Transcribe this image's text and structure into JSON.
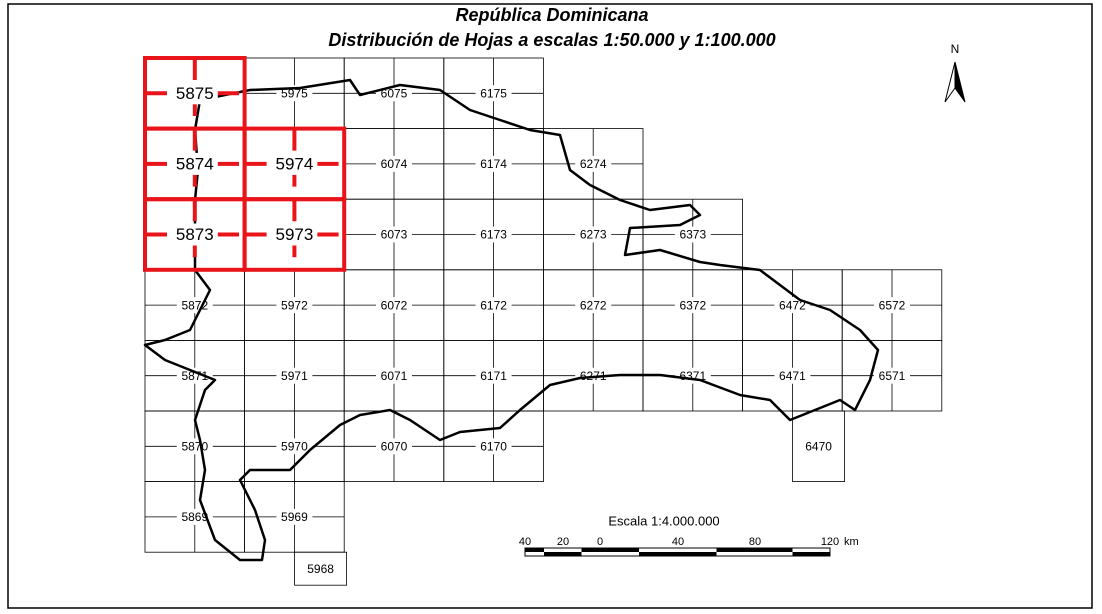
{
  "title": [
    "República Dominicana",
    "Distribución de Hojas a escalas 1:50.000 y 1:100.000"
  ],
  "north": "N",
  "sheets": [
    {
      "label": "5875",
      "selected": true
    },
    {
      "label": "5975",
      "selected": false
    },
    {
      "label": "6075",
      "selected": false
    },
    {
      "label": "6175",
      "selected": false
    },
    {
      "label": "5874",
      "selected": true
    },
    {
      "label": "5974",
      "selected": true
    },
    {
      "label": "6074",
      "selected": false
    },
    {
      "label": "6174",
      "selected": false
    },
    {
      "label": "6274",
      "selected": false
    },
    {
      "label": "5873",
      "selected": true
    },
    {
      "label": "5973",
      "selected": true
    },
    {
      "label": "6073",
      "selected": false
    },
    {
      "label": "6173",
      "selected": false
    },
    {
      "label": "6273",
      "selected": false
    },
    {
      "label": "6373",
      "selected": false
    },
    {
      "label": "5872",
      "selected": false
    },
    {
      "label": "5972",
      "selected": false
    },
    {
      "label": "6072",
      "selected": false
    },
    {
      "label": "6172",
      "selected": false
    },
    {
      "label": "6272",
      "selected": false
    },
    {
      "label": "6372",
      "selected": false
    },
    {
      "label": "6472",
      "selected": false
    },
    {
      "label": "6572",
      "selected": false
    },
    {
      "label": "5871",
      "selected": false
    },
    {
      "label": "5971",
      "selected": false
    },
    {
      "label": "6071",
      "selected": false
    },
    {
      "label": "6171",
      "selected": false
    },
    {
      "label": "6271",
      "selected": false
    },
    {
      "label": "6371",
      "selected": false
    },
    {
      "label": "6471",
      "selected": false
    },
    {
      "label": "6571",
      "selected": false
    },
    {
      "label": "5870",
      "selected": false
    },
    {
      "label": "5970",
      "selected": false
    },
    {
      "label": "6070",
      "selected": false
    },
    {
      "label": "6170",
      "selected": false
    },
    {
      "label": "6470",
      "selected": false
    },
    {
      "label": "5869",
      "selected": false
    },
    {
      "label": "5969",
      "selected": false
    },
    {
      "label": "5968",
      "selected": false
    }
  ],
  "scale": {
    "title": "Escala 1:4.000.000",
    "ticks": [
      "40",
      "20",
      "0",
      "40",
      "80",
      "120"
    ],
    "unit": "km"
  }
}
